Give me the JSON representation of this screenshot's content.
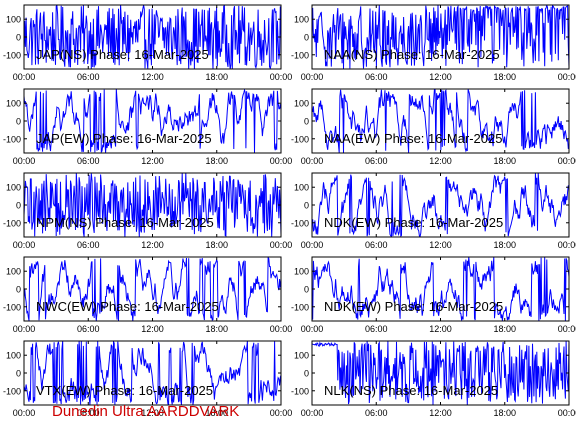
{
  "footer": {
    "text": "Dunedin Ultra AARDDVARK",
    "color": "#cc0000"
  },
  "colors": {
    "trace": "#0000ff",
    "axes": "#000000",
    "label": "#000000"
  },
  "chart_data": [
    {
      "type": "line",
      "title": "JAP(NS) Phase: 16-Mar-2025",
      "x_ticks": [
        "00:00",
        "06:00",
        "12:00",
        "18:00",
        "00:00"
      ],
      "y_ticks": [
        100,
        0,
        -100
      ],
      "ylim": [
        -180,
        180
      ],
      "style": "dense"
    },
    {
      "type": "line",
      "title": "NAA(NS) Phase: 16-Mar-2025",
      "x_ticks": [
        "00:00",
        "06:00",
        "12:00",
        "18:00",
        "00:00"
      ],
      "y_ticks": [
        100,
        0,
        -100
      ],
      "ylim": [
        -180,
        180
      ],
      "style": "split"
    },
    {
      "type": "line",
      "title": "JAP(EW) Phase: 16-Mar-2025",
      "x_ticks": [
        "00:00",
        "06:00",
        "12:00",
        "18:00",
        "00:00"
      ],
      "y_ticks": [
        100,
        0,
        -100
      ],
      "ylim": [
        -180,
        180
      ],
      "style": "wrap"
    },
    {
      "type": "line",
      "title": "NAA(EW) Phase: 16-Mar-2025",
      "x_ticks": [
        "00:00",
        "06:00",
        "12:00",
        "18:00",
        "00:00"
      ],
      "y_ticks": [
        100,
        0,
        -100
      ],
      "ylim": [
        -180,
        180
      ],
      "style": "wrap"
    },
    {
      "type": "line",
      "title": "NPM(NS) Phase: 16-Mar-2025",
      "x_ticks": [
        "00:00",
        "06:00",
        "12:00",
        "18:00",
        "00:00"
      ],
      "y_ticks": [
        100,
        0,
        -100
      ],
      "ylim": [
        -180,
        180
      ],
      "style": "dense"
    },
    {
      "type": "line",
      "title": "NDK(EW) Phase: 16-Mar-2025",
      "x_ticks": [
        "00:00",
        "06:00",
        "12:00",
        "18:00",
        "00:00"
      ],
      "y_ticks": [
        100,
        0,
        -100
      ],
      "ylim": [
        -180,
        180
      ],
      "style": "wrap"
    },
    {
      "type": "line",
      "title": "NWC(EW) Phase: 16-Mar-2025",
      "x_ticks": [
        "00:00",
        "06:00",
        "12:00",
        "18:00",
        "00:00"
      ],
      "y_ticks": [
        100,
        0,
        -100
      ],
      "ylim": [
        -180,
        180
      ],
      "style": "wrap"
    },
    {
      "type": "line",
      "title": "NDK(EW) Phase: 16-Mar-2025",
      "x_ticks": [
        "00:00",
        "06:00",
        "12:00",
        "18:00",
        "00:00"
      ],
      "y_ticks": [
        100,
        0,
        -100
      ],
      "ylim": [
        -180,
        180
      ],
      "style": "wrap"
    },
    {
      "type": "line",
      "title": "VTX(EW) Phase: 16-Mar-2025",
      "x_ticks": [
        "00:00",
        "06:00",
        "12:00",
        "18:00",
        "00:00"
      ],
      "y_ticks": [
        100,
        0,
        -100
      ],
      "ylim": [
        -180,
        180
      ],
      "style": "wrap"
    },
    {
      "type": "line",
      "title": "NLK(NS) Phase: 16-Mar-2025",
      "x_ticks": [
        "00:00",
        "06:00",
        "12:00",
        "18:00",
        "00:00"
      ],
      "y_ticks": [
        100,
        0,
        -100
      ],
      "ylim": [
        -180,
        180
      ],
      "style": "late"
    }
  ]
}
